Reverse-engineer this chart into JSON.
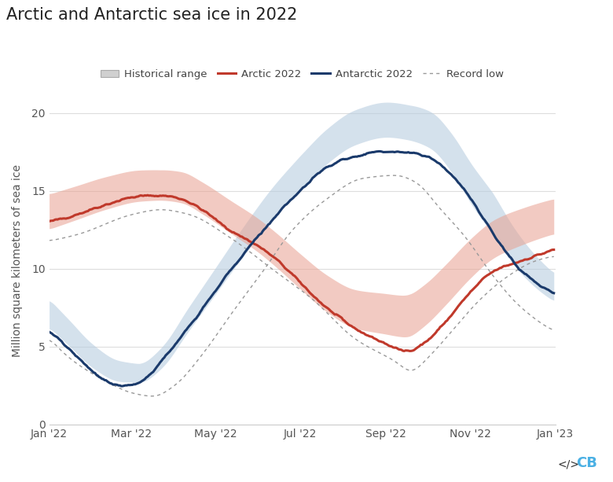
{
  "title": "Arctic and Antarctic sea ice in 2022",
  "ylabel": "Million square kilometers of sea ice",
  "background_color": "#ffffff",
  "plot_bg_color": "#ffffff",
  "grid_color": "#dddddd",
  "title_fontsize": 15,
  "label_fontsize": 10,
  "tick_fontsize": 10,
  "arctic_color": "#c0392b",
  "antarctic_color": "#1a3a6b",
  "arctic_shade_color": "#e8a090",
  "antarctic_shade_color": "#b8cde0",
  "record_low_color": "#999999",
  "ylim": [
    0,
    21
  ],
  "yticks": [
    0,
    5,
    10,
    15,
    20
  ],
  "x_tick_labels": [
    "Jan '22",
    "Mar '22",
    "May '22",
    "Jul '22",
    "Sep '22",
    "Nov '22",
    "Jan '23"
  ],
  "x_tick_positions": [
    0,
    59,
    120,
    181,
    243,
    304,
    365
  ]
}
